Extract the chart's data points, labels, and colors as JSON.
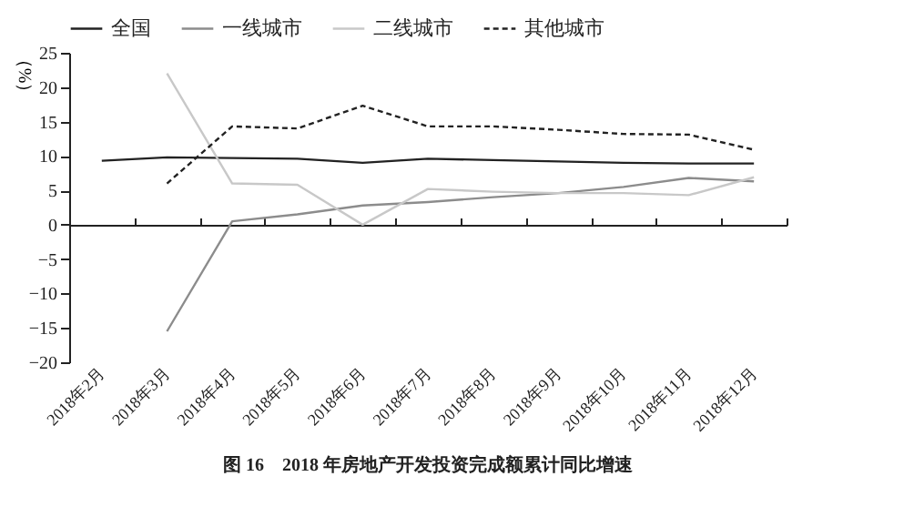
{
  "chart_data": {
    "type": "line",
    "title": "图 16　2018 年房地产开发投资完成额累计同比增速",
    "ylabel": "（%）",
    "categories": [
      "2018年2月",
      "2018年3月",
      "2018年4月",
      "2018年5月",
      "2018年6月",
      "2018年7月",
      "2018年8月",
      "2018年9月",
      "2018年10月",
      "2018年11月",
      "2018年12月"
    ],
    "series": [
      {
        "name": "全国",
        "color": "#222222",
        "values": [
          9.3,
          9.8,
          9.7,
          9.6,
          9.0,
          9.6,
          9.4,
          9.2,
          9.0,
          8.9,
          8.9
        ]
      },
      {
        "name": "一线城市",
        "color": "#8c8c8c",
        "values": [
          null,
          -15.5,
          0.5,
          1.5,
          2.8,
          3.3,
          4.0,
          4.6,
          5.5,
          6.8,
          6.3
        ]
      },
      {
        "name": "二线城市",
        "color": "#c8c8c8",
        "values": [
          null,
          22.0,
          6.0,
          5.8,
          0.0,
          5.2,
          4.8,
          4.6,
          4.6,
          4.3,
          6.9
        ]
      },
      {
        "name": "其他城市",
        "color": "#222222",
        "line_style": "dashed",
        "values": [
          null,
          6.0,
          14.3,
          14.0,
          17.3,
          14.3,
          14.3,
          13.8,
          13.2,
          13.1,
          10.9
        ]
      }
    ],
    "ylim": [
      -20,
      25
    ],
    "yticks": [
      -20,
      -15,
      -10,
      -5,
      0,
      5,
      10,
      15,
      20,
      25
    ],
    "legend": "top",
    "marker": "none"
  }
}
